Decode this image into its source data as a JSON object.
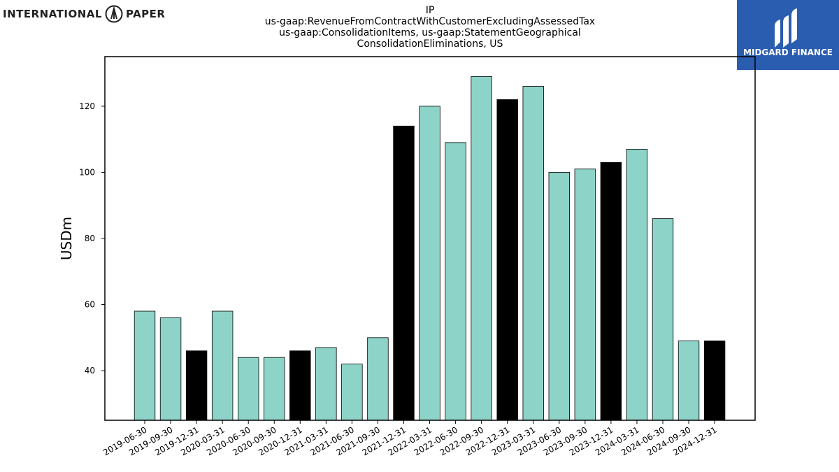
{
  "header": {
    "left_logo_text_1": "INTERNATIONAL",
    "left_logo_text_2": "PAPER",
    "right_logo_text": "MIDGARD FINANCE"
  },
  "chart_data": {
    "type": "bar",
    "title": [
      "IP",
      "us-gaap:RevenueFromContractWithCustomerExcludingAssessedTax",
      "us-gaap:ConsolidationItems, us-gaap:StatementGeographical",
      "ConsolidationEliminations, US"
    ],
    "xlabel": "",
    "ylabel": "USDm",
    "ylim": [
      25,
      135
    ],
    "yticks": [
      40,
      60,
      80,
      100,
      120
    ],
    "categories": [
      "2019-06-30",
      "2019-09-30",
      "2019-12-31",
      "2020-03-31",
      "2020-06-30",
      "2020-09-30",
      "2020-12-31",
      "2021-03-31",
      "2021-06-30",
      "2021-09-30",
      "2021-12-31",
      "2022-03-31",
      "2022-06-30",
      "2022-09-30",
      "2022-12-31",
      "2023-03-31",
      "2023-06-30",
      "2023-09-30",
      "2023-12-31",
      "2024-03-31",
      "2024-06-30",
      "2024-09-30",
      "2024-12-31"
    ],
    "values": [
      58,
      56,
      46,
      58,
      44,
      44,
      46,
      47,
      42,
      50,
      114,
      120,
      109,
      129,
      122,
      126,
      100,
      101,
      103,
      107,
      86,
      49,
      49
    ],
    "colors": [
      "#8dd3c7",
      "#8dd3c7",
      "#000000",
      "#8dd3c7",
      "#8dd3c7",
      "#8dd3c7",
      "#000000",
      "#8dd3c7",
      "#8dd3c7",
      "#8dd3c7",
      "#000000",
      "#8dd3c7",
      "#8dd3c7",
      "#8dd3c7",
      "#000000",
      "#8dd3c7",
      "#8dd3c7",
      "#8dd3c7",
      "#000000",
      "#8dd3c7",
      "#8dd3c7",
      "#8dd3c7",
      "#000000"
    ],
    "grid": false,
    "legend": "none"
  }
}
